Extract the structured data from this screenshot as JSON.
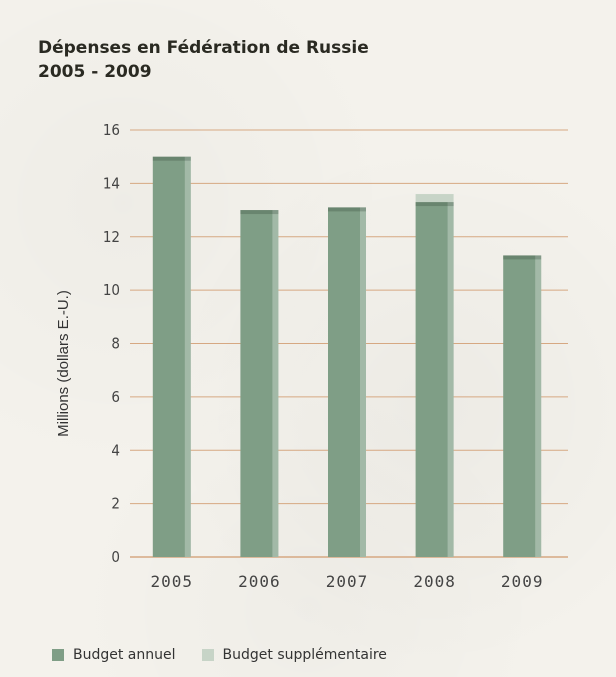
{
  "chart_data": {
    "type": "bar",
    "title": "Dépenses en Fédération de Russie",
    "subtitle": "2005 - 2009",
    "categories": [
      "2005",
      "2006",
      "2007",
      "2008",
      "2009"
    ],
    "series": [
      {
        "name": "Budget annuel",
        "values": [
          15.0,
          13.0,
          13.1,
          13.3,
          11.3
        ],
        "color": "#7f9e86"
      },
      {
        "name": "Budget supplémentaire",
        "values": [
          0,
          0,
          0,
          0.3,
          0
        ],
        "color": "#c7d4c7"
      }
    ],
    "ylabel": "Millions (dollars E.-U.)",
    "ylim": [
      0,
      16
    ],
    "yticks": [
      0,
      2,
      4,
      6,
      8,
      10,
      12,
      14,
      16
    ],
    "stacked": true,
    "grid": true,
    "gridline_color": "#d6a882",
    "legend_position": "bottom-left"
  }
}
